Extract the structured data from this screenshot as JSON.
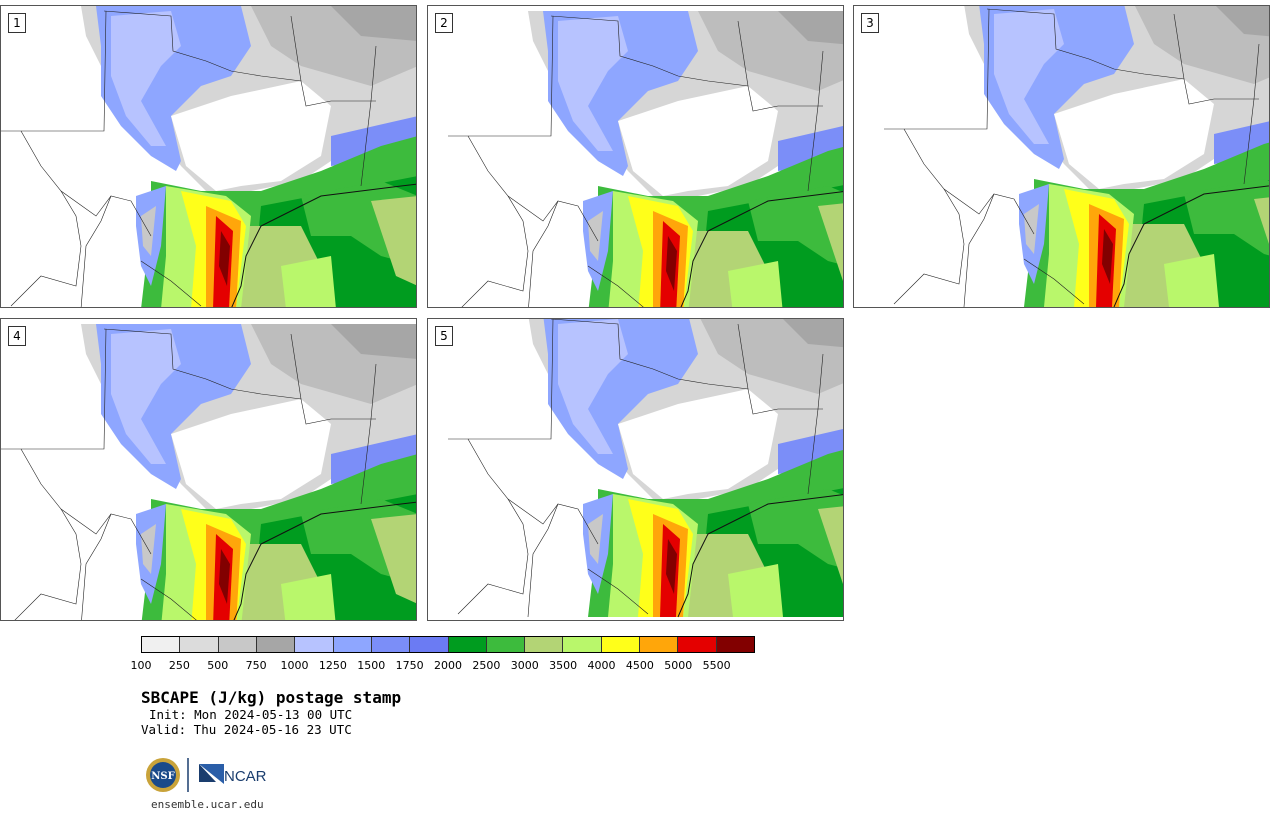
{
  "panels": [
    {
      "label": "1"
    },
    {
      "label": "2"
    },
    {
      "label": "3"
    },
    {
      "label": "4"
    },
    {
      "label": "5"
    }
  ],
  "colorbar": {
    "colors": [
      "#f0f0f0",
      "#dcdcdc",
      "#c8c8c8",
      "#a6a6a6",
      "#b7c3ff",
      "#8ea6ff",
      "#7b8ef8",
      "#6b7bf3",
      "#009c1f",
      "#3dbb3d",
      "#b3d475",
      "#b9f76b",
      "#ffff1a",
      "#ffa60a",
      "#e40000",
      "#820000"
    ],
    "ticks": [
      "100",
      "250",
      "500",
      "750",
      "1000",
      "1250",
      "1500",
      "1750",
      "2000",
      "2500",
      "3000",
      "3500",
      "4000",
      "4500",
      "5000",
      "5500"
    ]
  },
  "title": "SBCAPE (J/kg) postage stamp",
  "init": "Init: Mon 2024-05-13 00 UTC",
  "valid": "Valid: Thu 2024-05-16 23 UTC",
  "logos": {
    "nsf": "NSF",
    "ncar": "NCAR"
  },
  "url": "ensemble.ucar.edu"
}
